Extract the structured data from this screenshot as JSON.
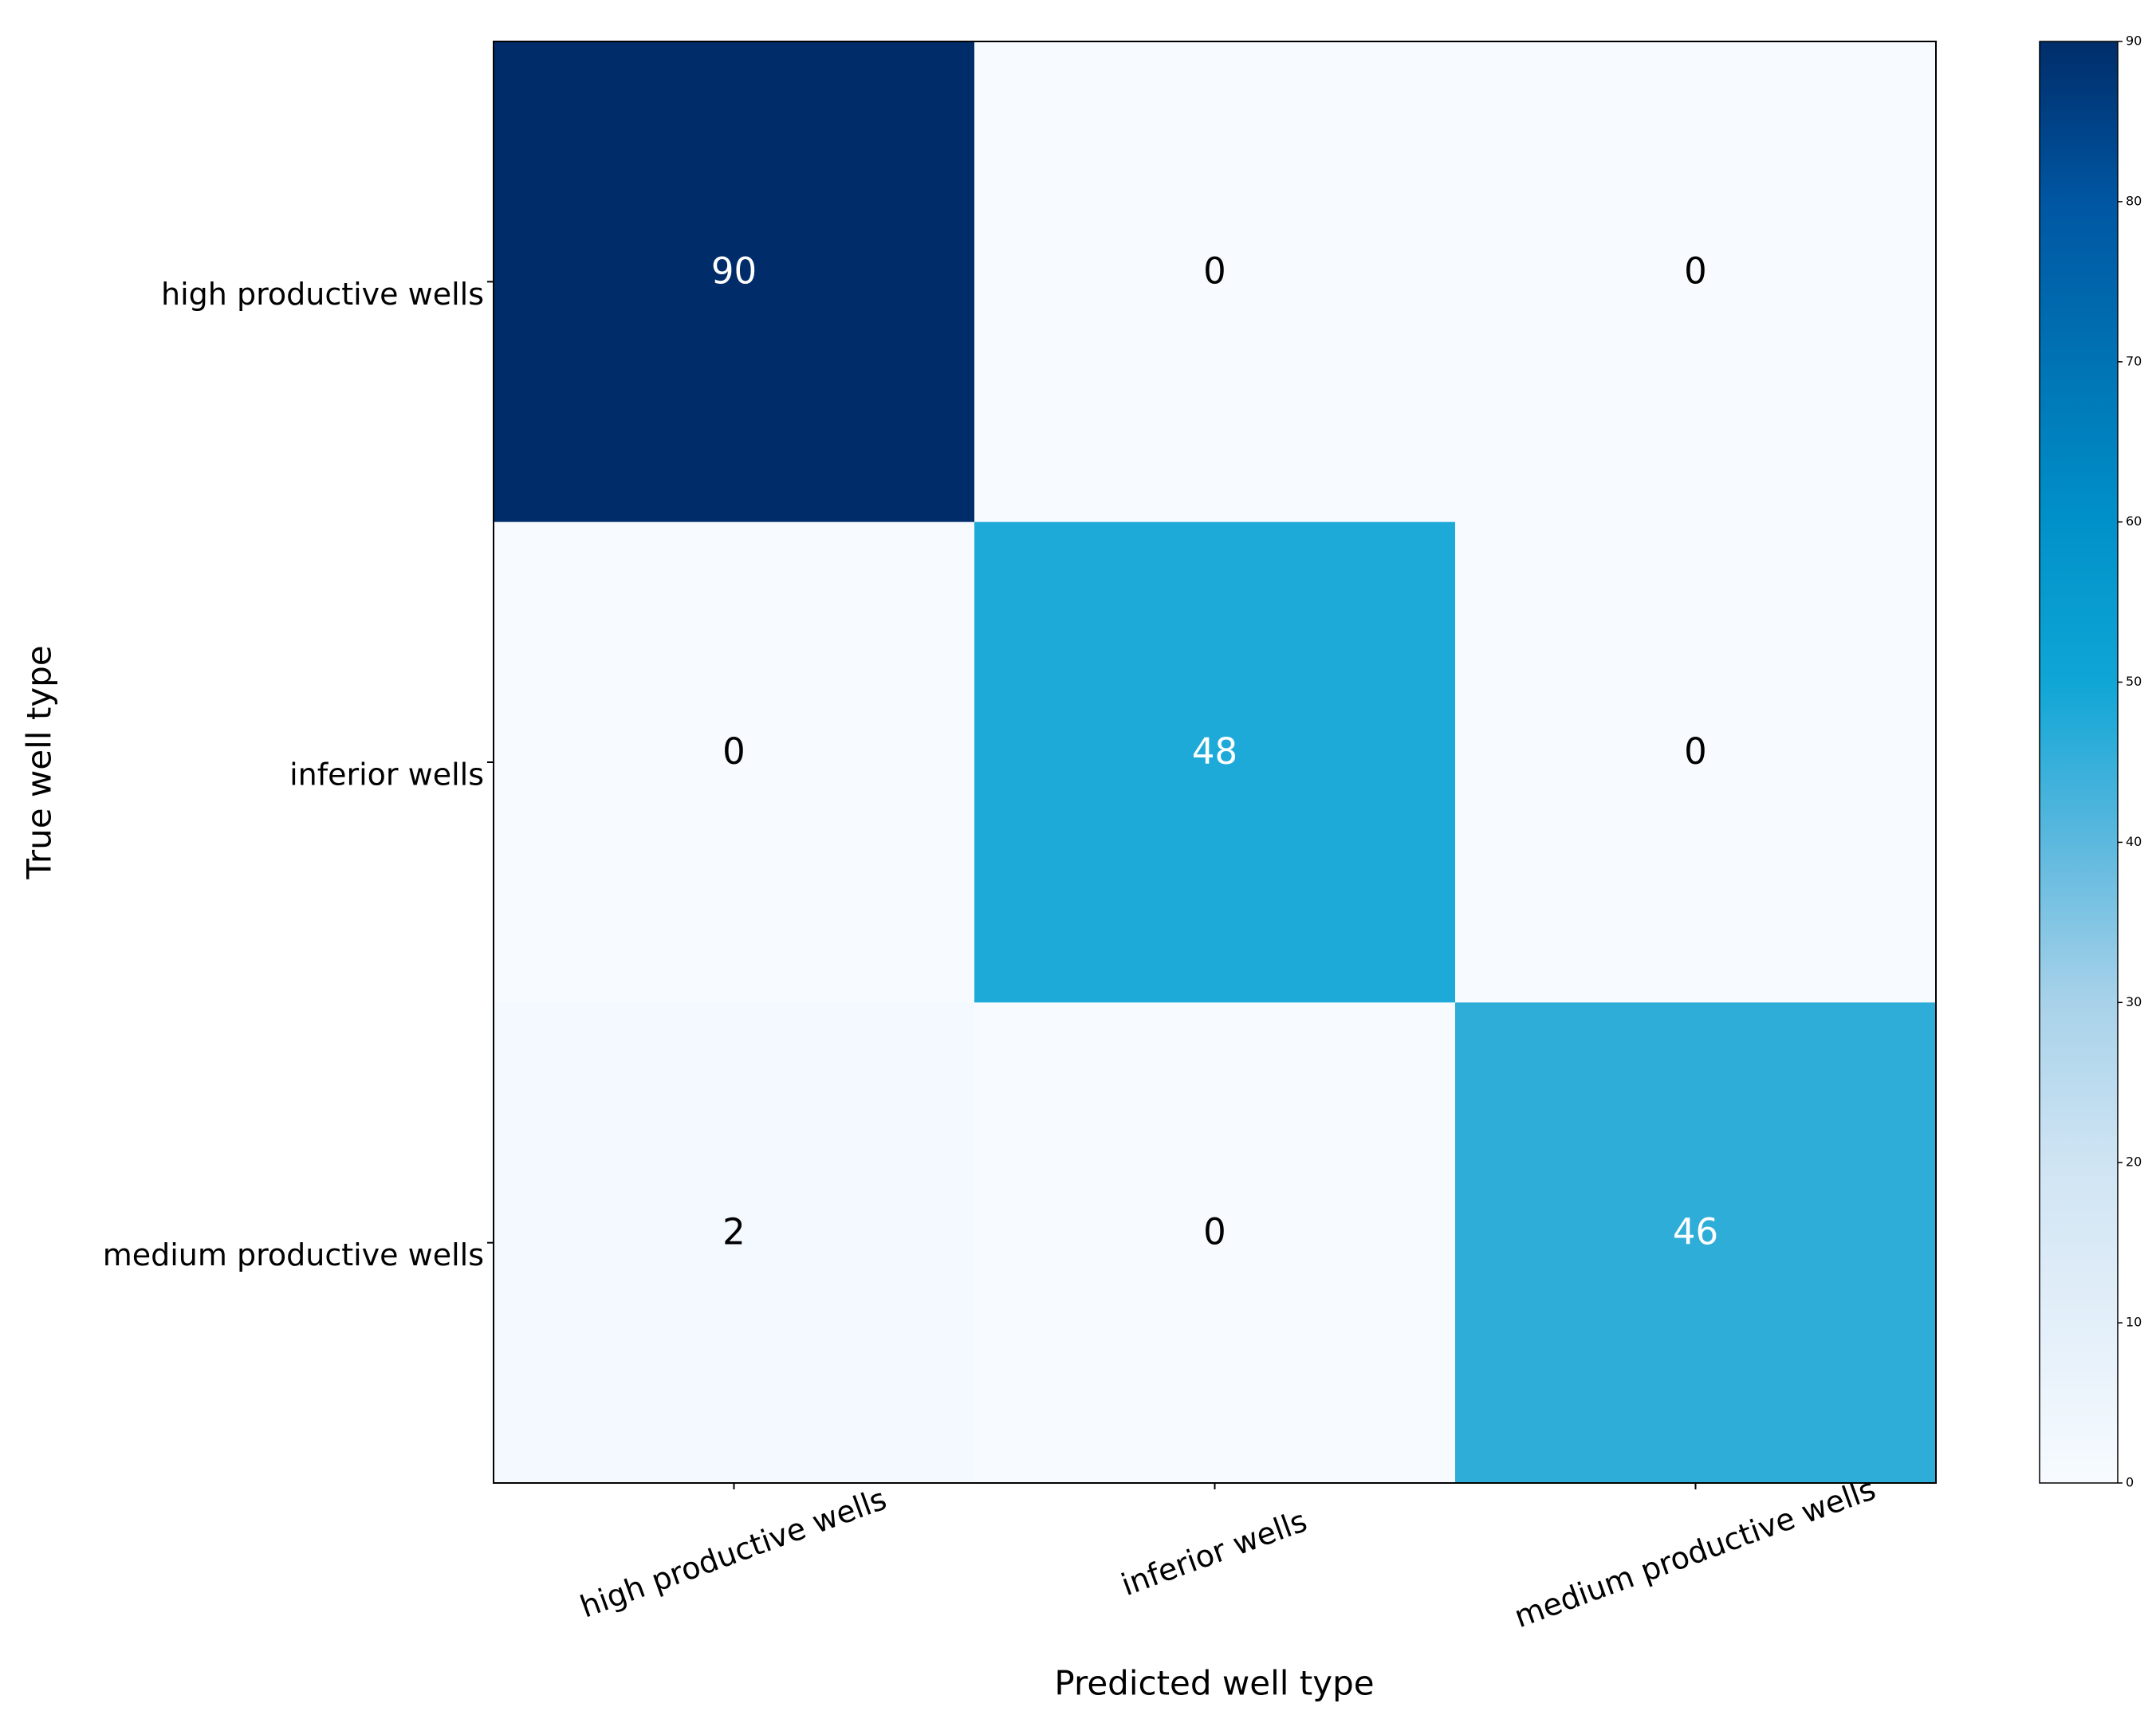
{
  "chart_data": {
    "type": "heatmap",
    "x_label": "Predicted well type",
    "y_label": "True well type",
    "x_categories": [
      "high productive wells",
      "inferior wells",
      "medium productive wells"
    ],
    "y_categories": [
      "high productive wells",
      "inferior wells",
      "medium productive wells"
    ],
    "values": [
      [
        90,
        0,
        0
      ],
      [
        0,
        48,
        0
      ],
      [
        2,
        0,
        46
      ]
    ],
    "zlim": [
      0,
      90
    ],
    "zticks": [
      0,
      10,
      20,
      30,
      40,
      50,
      60,
      70,
      80,
      90
    ],
    "colormap": [
      "#f7fbff",
      "#e3eff9",
      "#cfe4f3",
      "#a8d2ea",
      "#5cb8de",
      "#0fa6d6",
      "#0091c9",
      "#0073b4",
      "#0056a2",
      "#002d6a"
    ]
  }
}
